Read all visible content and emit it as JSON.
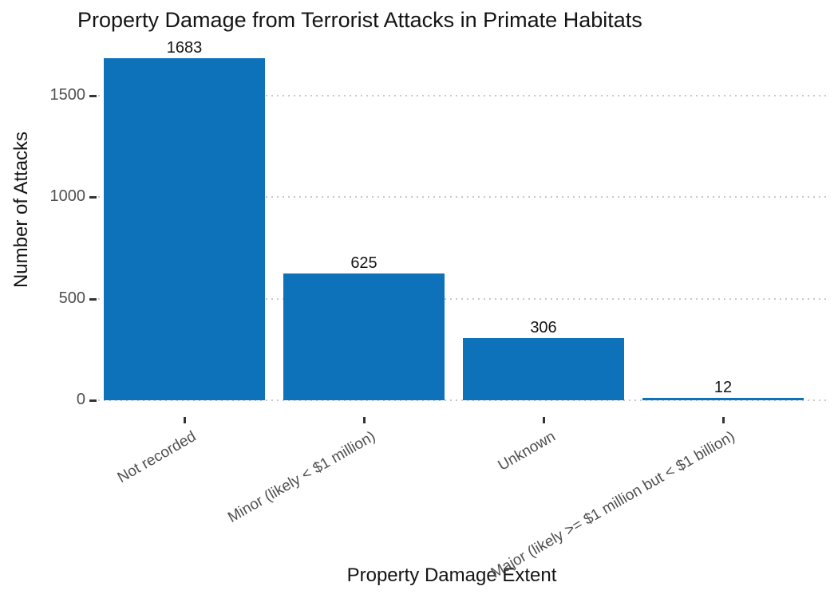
{
  "chart_data": {
    "type": "bar",
    "title": "Property Damage from Terrorist Attacks in Primate Habitats",
    "xlabel": "Property Damage Extent",
    "ylabel": "Number of Attacks",
    "categories": [
      "Not recorded",
      "Minor (likely < $1 million)",
      "Unknown",
      "Major (likely >= $1 million but < $1 billion)"
    ],
    "values": [
      1683,
      625,
      306,
      12
    ],
    "value_labels": [
      "1683",
      "625",
      "306",
      "12"
    ],
    "ytick_values": [
      0,
      500,
      1000,
      1500
    ],
    "ytick_labels": [
      "0",
      "500",
      "1000",
      "1500"
    ],
    "ylim": [
      0,
      1750
    ],
    "grid": "horizontal-dotted",
    "legend": "none",
    "x_label_rotation_deg": 30,
    "colors": {
      "bar_fill": "#0d72b9",
      "grid_dots": "#c8c8c8",
      "tick_marks": "#333333",
      "tick_label_text": "#4f4f4f",
      "axis_title_text": "#141414",
      "value_label_text": "#141414",
      "background": "#ffffff"
    }
  }
}
